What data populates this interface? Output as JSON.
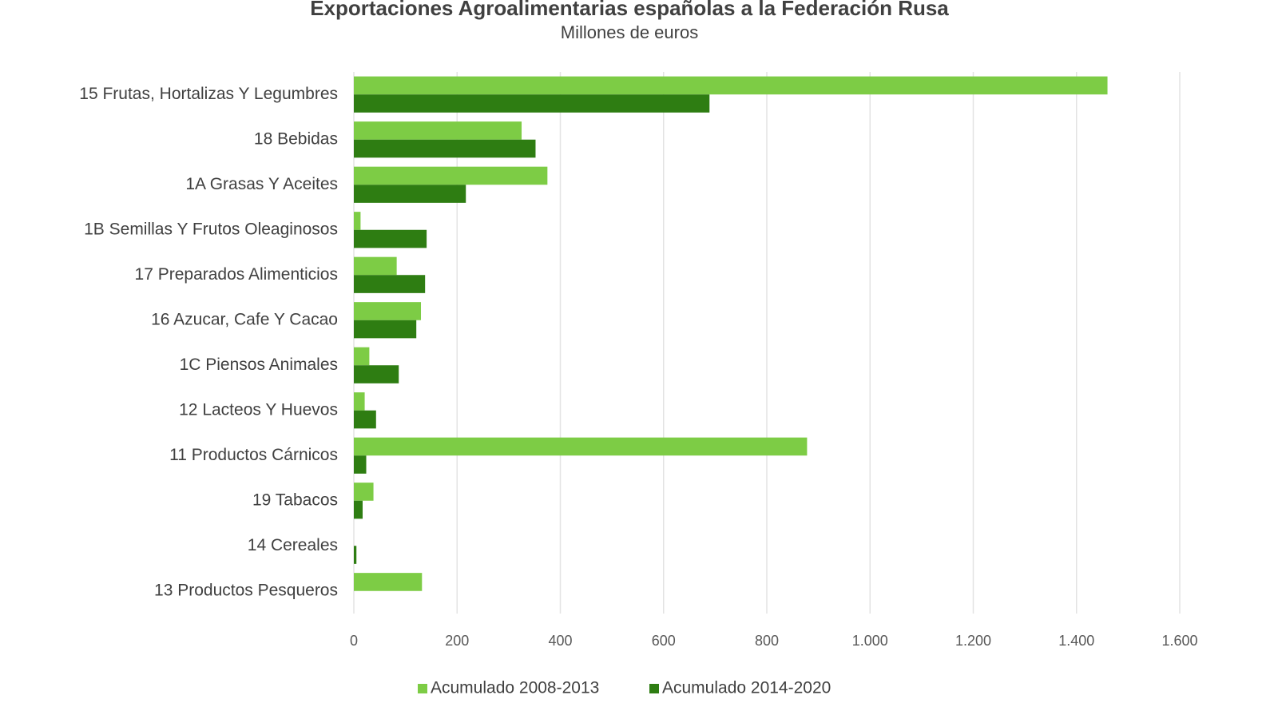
{
  "chart_data": {
    "type": "hbar",
    "title": "Exportaciones Agroalimentarias españolas a la Federación Rusa",
    "subtitle": "Millones  de euros",
    "categories": [
      "15 Frutas, Hortalizas Y Legumbres",
      "18 Bebidas",
      "1A Grasas Y Aceites",
      "1B Semillas Y Frutos Oleaginosos",
      "17 Preparados Alimenticios",
      "16 Azucar, Cafe Y Cacao",
      "1C Piensos Animales",
      "12 Lacteos Y Huevos",
      "11 Productos Cárnicos",
      "19 Tabacos",
      "14 Cereales",
      "13 Productos Pesqueros"
    ],
    "series": [
      {
        "name": "Acumulado 2008-2013",
        "color": "#7dcc45",
        "values": [
          1460,
          325,
          375,
          13,
          83,
          130,
          30,
          21,
          878,
          38,
          0,
          132
        ]
      },
      {
        "name": "Acumulado 2014-2020",
        "color": "#2e7d12",
        "values": [
          689,
          352,
          217,
          141,
          138,
          121,
          87,
          43,
          24,
          17,
          5,
          0
        ]
      }
    ],
    "xlim": [
      0,
      1600
    ],
    "xticks": [
      0,
      200,
      400,
      600,
      800,
      {
        "value": 1000,
        "label": "1.000"
      },
      {
        "value": 1200,
        "label": "1.200"
      },
      {
        "value": 1400,
        "label": "1.400"
      },
      {
        "value": 1600,
        "label": "1.600"
      }
    ],
    "grid": true,
    "legend": "bottom"
  }
}
